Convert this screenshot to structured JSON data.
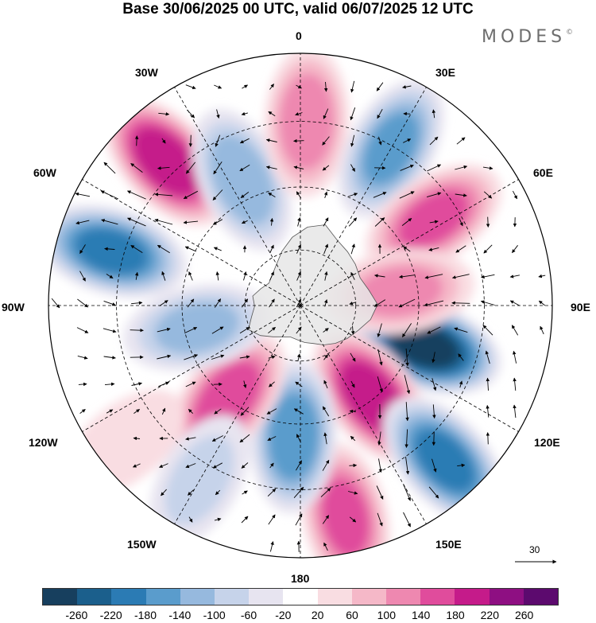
{
  "header": {
    "title": "Base 30/06/2025 00 UTC, valid 06/07/2025 12 UTC",
    "logo_text": "MODES",
    "logo_mark": "©"
  },
  "map": {
    "projection": "south-polar-stereographic",
    "meridian_labels": {
      "m0": "0",
      "m30e": "30E",
      "m60e": "60E",
      "m90e": "90E",
      "m120e": "120E",
      "m150e": "150E",
      "m180": "180",
      "m150w": "150W",
      "m120w": "120W",
      "m90w": "90W",
      "m60w": "60W",
      "m30w": "30W"
    },
    "land_color": "#e6e6e6",
    "anomaly_centers": [
      {
        "id": "a1",
        "value": -260,
        "bearing_deg": 108,
        "dist": 0.52
      },
      {
        "id": "a2",
        "value": 200,
        "bearing_deg": 142,
        "dist": 0.46
      },
      {
        "id": "a3",
        "value": -180,
        "bearing_deg": 137,
        "dist": 0.84
      },
      {
        "id": "a4",
        "value": 140,
        "bearing_deg": 168,
        "dist": 0.86
      },
      {
        "id": "a5",
        "value": -160,
        "bearing_deg": 183,
        "dist": 0.52
      },
      {
        "id": "a6",
        "value": 160,
        "bearing_deg": 218,
        "dist": 0.47
      },
      {
        "id": "a7",
        "value": -100,
        "bearing_deg": 258,
        "dist": 0.42
      },
      {
        "id": "a8",
        "value": -180,
        "bearing_deg": 286,
        "dist": 0.78
      },
      {
        "id": "a9",
        "value": 200,
        "bearing_deg": 317,
        "dist": 0.78
      },
      {
        "id": "a10",
        "value": -120,
        "bearing_deg": 335,
        "dist": 0.55
      },
      {
        "id": "a11",
        "value": 120,
        "bearing_deg": 2,
        "dist": 0.73
      },
      {
        "id": "a12",
        "value": -140,
        "bearing_deg": 30,
        "dist": 0.72
      },
      {
        "id": "a13",
        "value": 140,
        "bearing_deg": 57,
        "dist": 0.63
      },
      {
        "id": "a14",
        "value": 100,
        "bearing_deg": 82,
        "dist": 0.4
      },
      {
        "id": "a15",
        "value": 40,
        "bearing_deg": 232,
        "dist": 0.88
      },
      {
        "id": "a16",
        "value": -60,
        "bearing_deg": 210,
        "dist": 0.8
      }
    ],
    "reference_vector": "30"
  },
  "colorbar": {
    "colors": [
      "#173f5e",
      "#1b5f8c",
      "#2b7bb4",
      "#5a9ccc",
      "#96b9de",
      "#c6d3ea",
      "#e7e4f0",
      "#ffffff",
      "#f9dde2",
      "#f5b8c8",
      "#ee88b0",
      "#e04c9c",
      "#c51b8a",
      "#8e0f82",
      "#5c0a6e"
    ],
    "ticks": [
      "-260",
      "-220",
      "-180",
      "-140",
      "-100",
      "-60",
      "-20",
      "20",
      "60",
      "100",
      "140",
      "180",
      "220",
      "260"
    ]
  }
}
